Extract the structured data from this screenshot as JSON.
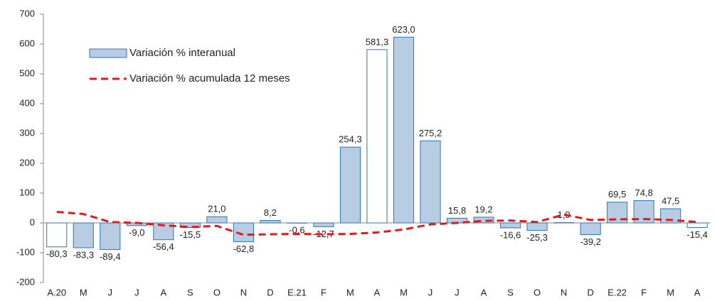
{
  "chart_data": {
    "type": "bar",
    "categories": [
      "A.20",
      "M",
      "J",
      "J",
      "A",
      "S",
      "O",
      "N",
      "D",
      "E.21",
      "F",
      "M",
      "A",
      "M",
      "J",
      "J",
      "A",
      "S",
      "O",
      "N",
      "D",
      "E.22",
      "F",
      "M",
      "A"
    ],
    "series": [
      {
        "name": "Variación % interanual",
        "type": "bar",
        "color": "#b8cce4",
        "edge_color": "#2e75b6",
        "point_colors": [
          "#ffffff",
          "#b8cce4",
          "#b8cce4",
          "#b8cce4",
          "#b8cce4",
          "#b8cce4",
          "#b8cce4",
          "#b8cce4",
          "#b8cce4",
          "#ffffff",
          "#b8cce4",
          "#b8cce4",
          "#ffffff",
          "#b8cce4",
          "#b8cce4",
          "#b8cce4",
          "#b8cce4",
          "#b8cce4",
          "#b8cce4",
          "#b8cce4",
          "#b8cce4",
          "#b8cce4",
          "#b8cce4",
          "#b8cce4",
          "#ffffff"
        ],
        "values": [
          -80.3,
          -83.3,
          -89.4,
          -9.0,
          -56.4,
          -15.5,
          21.0,
          -62.8,
          8.2,
          -0.6,
          -12.7,
          254.3,
          581.3,
          623.0,
          275.2,
          15.8,
          19.2,
          -16.6,
          -25.3,
          1.0,
          -39.2,
          69.5,
          74.8,
          47.5,
          -15.4
        ],
        "value_labels": [
          "-80,3",
          "-83,3",
          "-89,4",
          "-9,0",
          "-56,4",
          "-15,5",
          "21,0",
          "-62,8",
          "8,2",
          "-0,6",
          "-12,7",
          "254,3",
          "581,3",
          "623,0",
          "275,2",
          "15,8",
          "19,2",
          "-16,6",
          "-25,3",
          "1,0",
          "-39,2",
          "69,5",
          "74,8",
          "47,5",
          "-15,4"
        ]
      },
      {
        "name": "Variación % acumulada 12 meses",
        "type": "line",
        "color": "#e31a1c",
        "dashed": true,
        "values": [
          37,
          30,
          3,
          0,
          -8,
          -14,
          -10,
          -40,
          -38,
          -37,
          -38,
          -37,
          -32,
          -22,
          -5,
          0,
          7,
          8,
          3,
          28,
          10,
          12,
          13,
          10,
          3
        ]
      }
    ],
    "ylim": [
      -200,
      700
    ],
    "yticks": [
      -200,
      -100,
      0,
      100,
      200,
      300,
      400,
      500,
      600,
      700
    ],
    "grid": false,
    "legend": "upper left"
  }
}
